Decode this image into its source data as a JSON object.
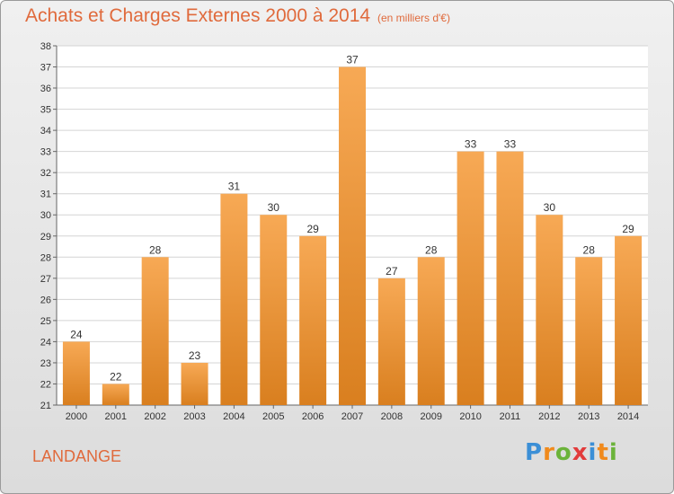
{
  "chart_data": {
    "type": "bar",
    "title": "Achats et Charges Externes 2000 à 2014",
    "subtitle": "(en milliers d'€)",
    "categories": [
      "2000",
      "2001",
      "2002",
      "2003",
      "2004",
      "2005",
      "2006",
      "2007",
      "2008",
      "2009",
      "2010",
      "2011",
      "2012",
      "2013",
      "2014"
    ],
    "values": [
      24,
      22,
      28,
      23,
      31,
      30,
      29,
      37,
      27,
      28,
      33,
      33,
      30,
      28,
      29
    ],
    "ylim": [
      21,
      38
    ],
    "yticks": [
      21,
      22,
      23,
      24,
      25,
      26,
      27,
      28,
      29,
      30,
      31,
      32,
      33,
      34,
      35,
      36,
      37,
      38
    ],
    "grid": true,
    "colors": {
      "bar_top": "#f7a955",
      "bar_bottom": "#d97f1f",
      "title": "#e06a3c"
    }
  },
  "commune": "LANDANGE",
  "logo": {
    "letters": [
      {
        "ch": "P",
        "color": "#3b8fd6"
      },
      {
        "ch": "r",
        "color": "#f08a1c"
      },
      {
        "ch": "o",
        "color": "#6bb33a"
      },
      {
        "ch": "x",
        "color": "#e23b3b"
      },
      {
        "ch": "i",
        "color": "#3b8fd6"
      },
      {
        "ch": "t",
        "color": "#f08a1c"
      },
      {
        "ch": "i",
        "color": "#6bb33a"
      }
    ]
  }
}
